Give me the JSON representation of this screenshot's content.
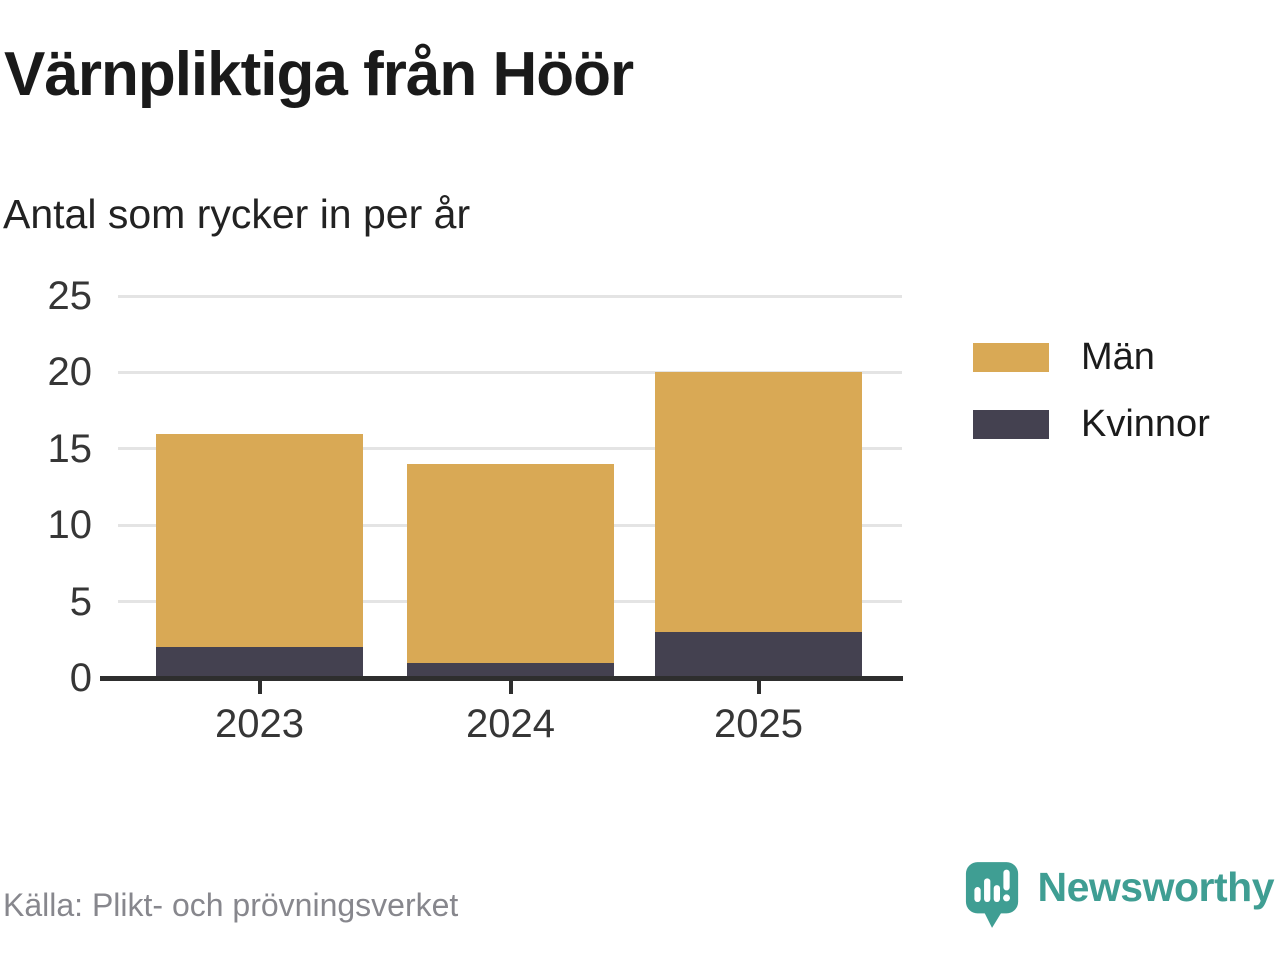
{
  "header": {
    "title": "Värnpliktiga från Höör",
    "subtitle": "Antal som rycker in per år"
  },
  "chart_data": {
    "type": "bar",
    "stacked": true,
    "title": "Värnpliktiga från Höör",
    "subtitle": "Antal som rycker in per år",
    "categories": [
      "2023",
      "2024",
      "2025"
    ],
    "series": [
      {
        "name": "Män",
        "color": "#d9a955",
        "values": [
          14,
          13,
          17
        ]
      },
      {
        "name": "Kvinnor",
        "color": "#444150",
        "values": [
          2,
          1,
          3
        ]
      }
    ],
    "stack_order_bottom_to_top": [
      "Kvinnor",
      "Män"
    ],
    "totals": [
      16,
      14,
      20
    ],
    "xlabel": "",
    "ylabel": "",
    "ylim": [
      0,
      25
    ],
    "yticks": [
      0,
      5,
      10,
      15,
      20,
      25
    ],
    "grid": "horizontal",
    "legend_position": "right"
  },
  "footer": {
    "source": "Källa: Plikt- och prövningsverket",
    "brand": "Newsworthy"
  },
  "icons": {
    "brand_icon": "speech-bubble-bar-chart-exclamation"
  },
  "colors": {
    "men": "#d9a955",
    "women": "#444150",
    "brand_teal": "#3f9e93",
    "gridline": "#e4e4e4",
    "axis": "#2e2e2e",
    "title_text": "#1a1a1a",
    "axis_text": "#363636",
    "source_text": "#87878d"
  }
}
